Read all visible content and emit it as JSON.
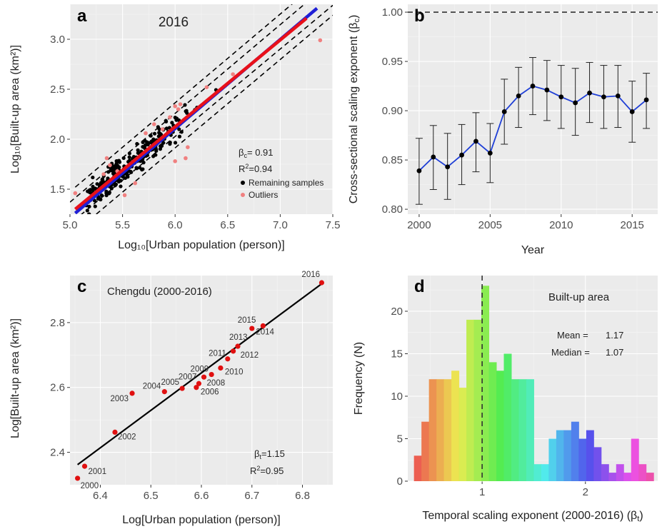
{
  "chart_data": [
    {
      "panel": "a",
      "type": "scatter",
      "title": "2016",
      "xlabel": "Log₁₀[Urban population (person)]",
      "ylabel": "Log₁₀[Built-up area (km²)]",
      "xlim": [
        5.0,
        7.5
      ],
      "ylim": [
        1.25,
        3.35
      ],
      "xticks": [
        5.0,
        5.5,
        6.0,
        6.5,
        7.0,
        7.5
      ],
      "yticks": [
        1.5,
        2.0,
        2.5,
        3.0
      ],
      "beta_text": "β",
      "beta_sub": "c",
      "beta_value": "= 0.91",
      "r2_text": "R",
      "r2_sup": "2",
      "r2_value": "=0.94",
      "legend": [
        {
          "label": "Remaining samples",
          "color": "#000000"
        },
        {
          "label": "Outliers",
          "color": "#f08080"
        }
      ],
      "fit_blue": {
        "x": [
          5.05,
          7.35
        ],
        "y": [
          1.26,
          3.31
        ],
        "color": "#1f1fd6"
      },
      "fit_red": {
        "x": [
          5.05,
          7.25
        ],
        "y": [
          1.3,
          3.21
        ],
        "color": "#e8101a"
      },
      "bands": [
        {
          "x": [
            5.05,
            7.2
          ],
          "y": [
            1.52,
            3.43
          ]
        },
        {
          "x": [
            5.0,
            7.5
          ],
          "y": [
            1.37,
            3.59
          ]
        },
        {
          "x": [
            5.1,
            7.5
          ],
          "y": [
            1.24,
            3.34
          ]
        },
        {
          "x": [
            5.25,
            7.5
          ],
          "y": [
            1.25,
            3.24
          ]
        }
      ],
      "outliers": [
        {
          "x": 5.05,
          "y": 1.46
        },
        {
          "x": 5.32,
          "y": 1.65
        },
        {
          "x": 5.35,
          "y": 1.81
        },
        {
          "x": 5.38,
          "y": 1.74
        },
        {
          "x": 5.45,
          "y": 1.68
        },
        {
          "x": 5.52,
          "y": 1.44
        },
        {
          "x": 5.72,
          "y": 2.06
        },
        {
          "x": 5.8,
          "y": 2.15
        },
        {
          "x": 5.88,
          "y": 2.1
        },
        {
          "x": 5.95,
          "y": 2.22
        },
        {
          "x": 6.0,
          "y": 2.33
        },
        {
          "x": 6.03,
          "y": 2.3
        },
        {
          "x": 6.05,
          "y": 2.35
        },
        {
          "x": 6.0,
          "y": 1.78
        },
        {
          "x": 6.12,
          "y": 1.92
        },
        {
          "x": 6.1,
          "y": 1.81
        },
        {
          "x": 6.3,
          "y": 2.52
        },
        {
          "x": 6.55,
          "y": 2.65
        },
        {
          "x": 7.38,
          "y": 2.99
        },
        {
          "x": 5.62,
          "y": 1.56
        }
      ],
      "samples_seed": 260
    },
    {
      "panel": "b",
      "type": "line",
      "xlabel": "Year",
      "ylabel": "Cross-sectional scaling exponent (β",
      "ylabel_sub": "c",
      "ylabel_end": ")",
      "xlim": [
        1999.2,
        2016.8
      ],
      "ylim": [
        0.795,
        1.008
      ],
      "xticks": [
        2000,
        2005,
        2010,
        2015
      ],
      "yticks": [
        0.8,
        0.85,
        0.9,
        0.95,
        1.0
      ],
      "ytick_labels": [
        "0.80",
        "0.85",
        "0.90",
        "0.95",
        "1.00"
      ],
      "reference_line": 1.0,
      "series": [
        {
          "x": [
            2000,
            2001,
            2002,
            2003,
            2004,
            2005,
            2006,
            2007,
            2008,
            2009,
            2010,
            2011,
            2012,
            2013,
            2014,
            2015,
            2016
          ],
          "y": [
            0.839,
            0.853,
            0.843,
            0.855,
            0.869,
            0.857,
            0.899,
            0.915,
            0.925,
            0.921,
            0.914,
            0.908,
            0.918,
            0.914,
            0.915,
            0.899,
            0.911
          ],
          "err_low": [
            0.805,
            0.82,
            0.81,
            0.825,
            0.838,
            0.827,
            0.866,
            0.883,
            0.896,
            0.89,
            0.882,
            0.875,
            0.888,
            0.882,
            0.883,
            0.868,
            0.882
          ],
          "err_high": [
            0.872,
            0.885,
            0.877,
            0.886,
            0.898,
            0.887,
            0.932,
            0.944,
            0.954,
            0.951,
            0.946,
            0.943,
            0.949,
            0.946,
            0.946,
            0.93,
            0.938
          ],
          "color": "#1f3fd6"
        }
      ]
    },
    {
      "panel": "c",
      "type": "scatter",
      "title": "Chengdu (2000-2016)",
      "xlabel": "Log[Urban population (person)]",
      "ylabel": "Log[Built-up area (km²)]",
      "xlim": [
        6.34,
        6.86
      ],
      "ylim": [
        2.3,
        2.945
      ],
      "xticks": [
        6.4,
        6.5,
        6.6,
        6.7,
        6.8
      ],
      "yticks": [
        2.4,
        2.6,
        2.8
      ],
      "beta_text": "β",
      "beta_sub": "t",
      "beta_value": "=1.15",
      "r2_text": "R",
      "r2_sup": "2",
      "r2_value": "=0.95",
      "fit": {
        "x": [
          6.355,
          6.84
        ],
        "y": [
          2.362,
          2.922
        ]
      },
      "points": [
        {
          "label": "2000",
          "x": 6.355,
          "y": 2.32
        },
        {
          "label": "2001",
          "x": 6.369,
          "y": 2.357
        },
        {
          "label": "2002",
          "x": 6.429,
          "y": 2.462
        },
        {
          "label": "2003",
          "x": 6.463,
          "y": 2.582
        },
        {
          "label": "2004",
          "x": 6.527,
          "y": 2.587
        },
        {
          "label": "2005",
          "x": 6.562,
          "y": 2.597
        },
        {
          "label": "2006",
          "x": 6.59,
          "y": 2.6
        },
        {
          "label": "2007",
          "x": 6.595,
          "y": 2.612
        },
        {
          "label": "2008",
          "x": 6.605,
          "y": 2.632
        },
        {
          "label": "2009",
          "x": 6.62,
          "y": 2.64
        },
        {
          "label": "2010",
          "x": 6.638,
          "y": 2.66
        },
        {
          "label": "2011",
          "x": 6.652,
          "y": 2.688
        },
        {
          "label": "2012",
          "x": 6.663,
          "y": 2.712
        },
        {
          "label": "2013",
          "x": 6.672,
          "y": 2.727
        },
        {
          "label": "2014",
          "x": 6.722,
          "y": 2.79
        },
        {
          "label": "2015",
          "x": 6.7,
          "y": 2.782
        },
        {
          "label": "2016",
          "x": 6.838,
          "y": 2.923
        }
      ]
    },
    {
      "panel": "d",
      "type": "bar",
      "title": "Built-up area",
      "xlabel": "Temporal scaling exponent (2000-2016) (β",
      "xlabel_sub": "t",
      "xlabel_end": ")",
      "ylabel": "Frequency (N)",
      "xlim": [
        0.28,
        2.7
      ],
      "ylim": [
        0,
        24.2
      ],
      "xticks": [
        1,
        2
      ],
      "yticks": [
        0,
        5,
        10,
        15,
        20
      ],
      "mean_label": "Mean =",
      "mean_value": "1.17",
      "median_label": "Median =",
      "median_value": "1.07",
      "vline": 1.0,
      "bin_start": 0.34,
      "bin_width": 0.0725,
      "counts": [
        3,
        7,
        12,
        12,
        12,
        13,
        11,
        19,
        19,
        23,
        14,
        13,
        15,
        12,
        12,
        12,
        2,
        2,
        5,
        6,
        6,
        7,
        5,
        6,
        4,
        2,
        1,
        2,
        1,
        5,
        2,
        1
      ]
    }
  ]
}
